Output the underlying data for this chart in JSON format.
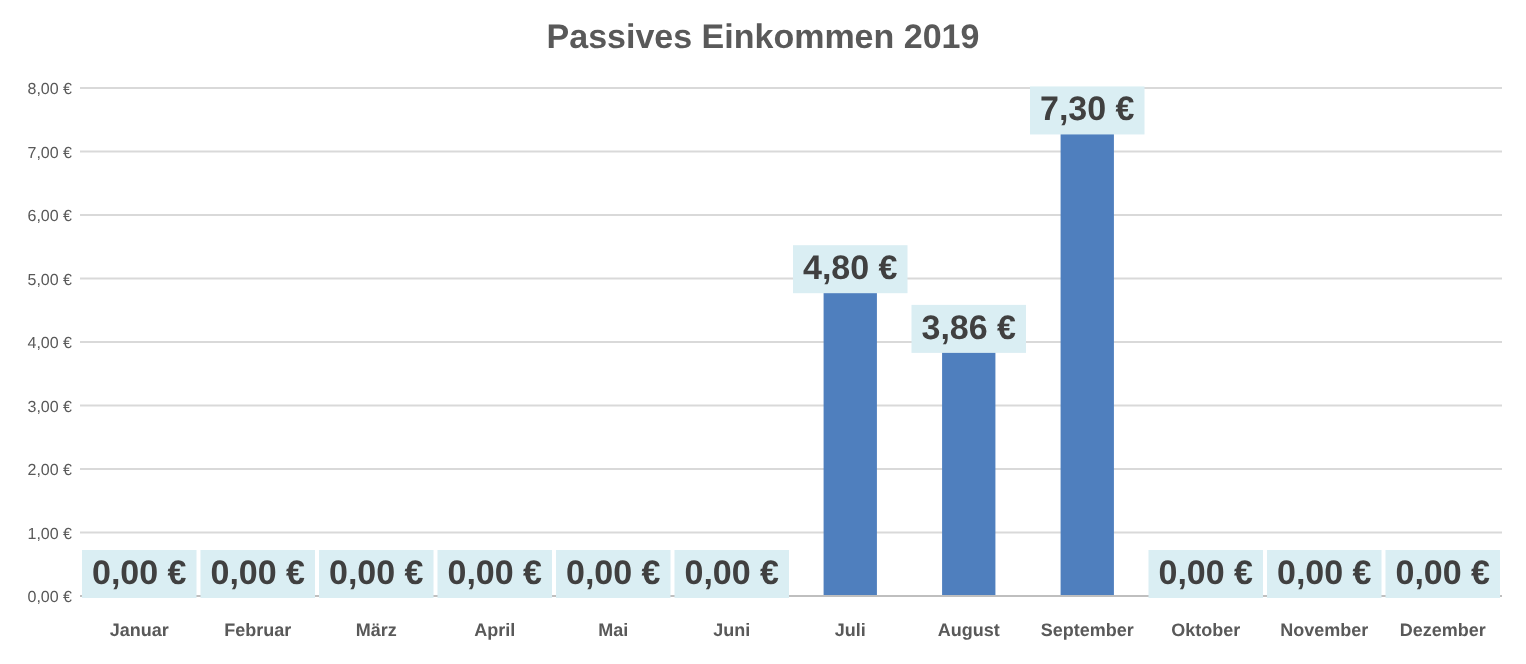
{
  "chart_data": {
    "type": "bar",
    "title": "Passives Einkommen 2019",
    "categories": [
      "Januar",
      "Februar",
      "März",
      "April",
      "Mai",
      "Juni",
      "Juli",
      "August",
      "September",
      "Oktober",
      "November",
      "Dezember"
    ],
    "values": [
      0,
      0,
      0,
      0,
      0,
      0,
      4.8,
      3.86,
      7.3,
      0,
      0,
      0
    ],
    "color": "#4f7fbe",
    "value_labels": [
      "0,00 €",
      "0,00 €",
      "0,00 €",
      "0,00 €",
      "0,00 €",
      "0,00 €",
      "4,80 €",
      "3,86 €",
      "7,30 €",
      "0,00 €",
      "0,00 €",
      "0,00 €"
    ],
    "ylim": [
      0,
      8
    ],
    "yticks": [
      {
        "value": 0,
        "label": "0,00 €"
      },
      {
        "value": 1,
        "label": "1,00 €"
      },
      {
        "value": 2,
        "label": "2,00 €"
      },
      {
        "value": 3,
        "label": "3,00 €"
      },
      {
        "value": 4,
        "label": "4,00 €"
      },
      {
        "value": 5,
        "label": "5,00 €"
      },
      {
        "value": 6,
        "label": "6,00 €"
      },
      {
        "value": 7,
        "label": "7,00 €"
      },
      {
        "value": 8,
        "label": "8,00 €"
      }
    ],
    "grid": "y"
  }
}
